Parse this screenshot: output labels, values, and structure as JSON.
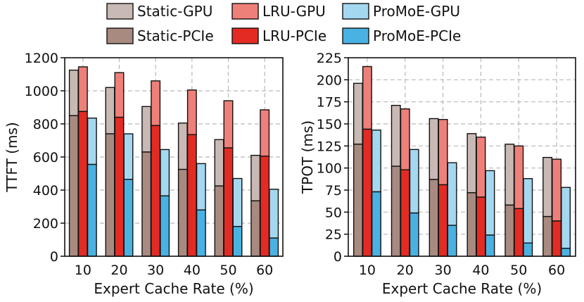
{
  "legend": [
    {
      "key": "static_gpu",
      "label": "Static-GPU",
      "color": "#c9b9b4"
    },
    {
      "key": "lru_gpu",
      "label": "LRU-GPU",
      "color": "#ee8079"
    },
    {
      "key": "promoe_gpu",
      "label": "ProMoE-GPU",
      "color": "#a3d8f0"
    },
    {
      "key": "static_pcie",
      "label": "Static-PCIe",
      "color": "#a88a80"
    },
    {
      "key": "lru_pcie",
      "label": "LRU-PCIe",
      "color": "#e32b23"
    },
    {
      "key": "promoe_pcie",
      "label": "ProMoE-PCIe",
      "color": "#4ab2e2"
    }
  ],
  "chart_data": [
    {
      "type": "bar",
      "stacked": true,
      "title": "",
      "xlabel": "Expert Cache Rate (%)",
      "ylabel": "TTFT (ms)",
      "ylim": [
        0,
        1200
      ],
      "yticks": [
        "0",
        "200",
        "400",
        "600",
        "800",
        "1000",
        "1200"
      ],
      "categories": [
        "10",
        "20",
        "30",
        "40",
        "50",
        "60"
      ],
      "grid": true,
      "series": [
        {
          "name": "Static",
          "pcie": [
            850,
            740,
            630,
            525,
            425,
            335
          ],
          "total": [
            1125,
            1020,
            905,
            805,
            705,
            610
          ]
        },
        {
          "name": "LRU",
          "pcie": [
            875,
            840,
            790,
            735,
            655,
            605
          ],
          "total": [
            1145,
            1110,
            1060,
            1005,
            940,
            885
          ]
        },
        {
          "name": "ProMoE",
          "pcie": [
            555,
            465,
            365,
            280,
            180,
            110
          ],
          "total": [
            835,
            740,
            645,
            560,
            470,
            405
          ]
        }
      ]
    },
    {
      "type": "bar",
      "stacked": true,
      "title": "",
      "xlabel": "Expert Cache Rate (%)",
      "ylabel": "TPOT (ms)",
      "ylim": [
        0,
        225
      ],
      "yticks": [
        "0",
        "25",
        "50",
        "75",
        "100",
        "125",
        "150",
        "175",
        "200",
        "225"
      ],
      "categories": [
        "10",
        "20",
        "30",
        "40",
        "50",
        "60"
      ],
      "grid": true,
      "series": [
        {
          "name": "Static",
          "pcie": [
            127,
            102,
            87,
            72,
            58,
            45
          ],
          "total": [
            196,
            171,
            156,
            139,
            127,
            112
          ]
        },
        {
          "name": "LRU",
          "pcie": [
            144,
            98,
            81,
            67,
            54,
            40
          ],
          "total": [
            215,
            167,
            155,
            135,
            125,
            110
          ]
        },
        {
          "name": "ProMoE",
          "pcie": [
            73,
            49,
            35,
            24,
            15,
            9
          ],
          "total": [
            143,
            121,
            106,
            97,
            88,
            78
          ]
        }
      ]
    }
  ]
}
